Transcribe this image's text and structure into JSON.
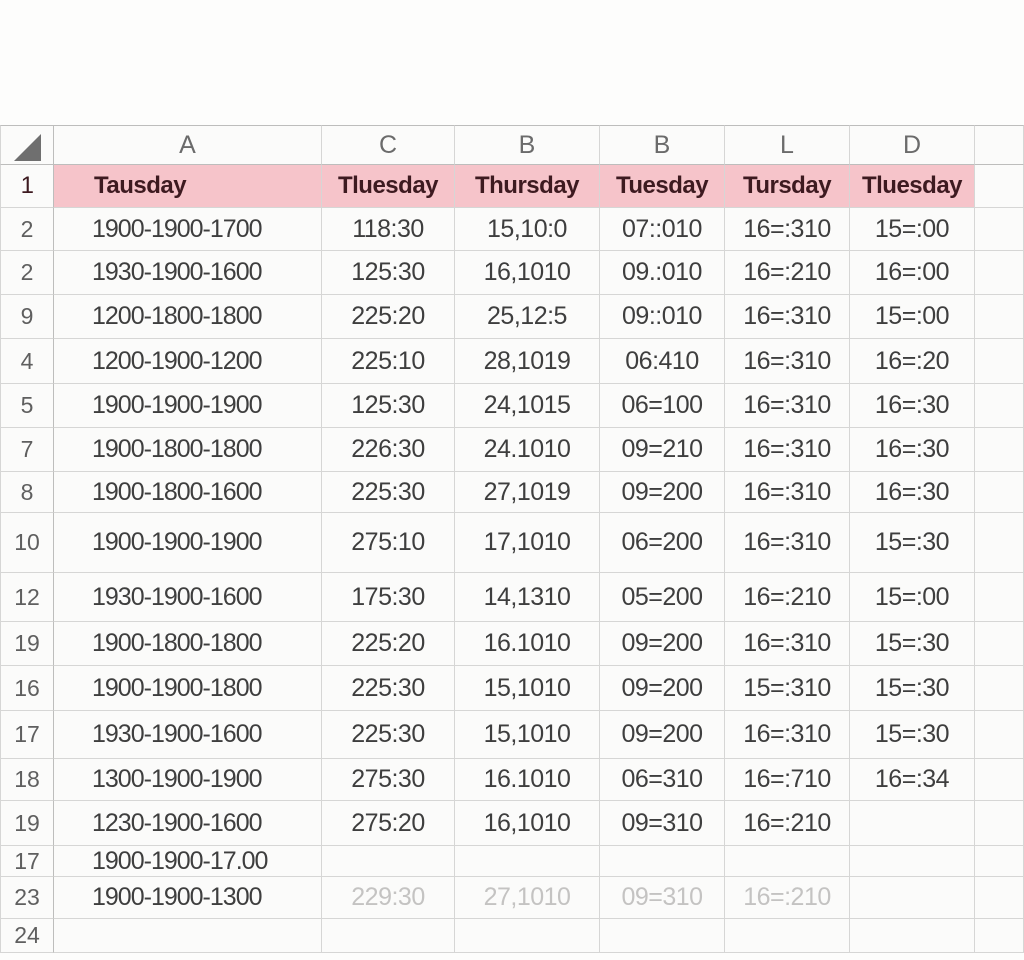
{
  "spreadsheet": {
    "corner_icon": "select-all-triangle",
    "column_headers": [
      "A",
      "C",
      "B",
      "B",
      "L",
      "D",
      ""
    ],
    "day_header_row": {
      "label": "1",
      "cells": [
        "Tausday",
        "Tluesday",
        "Thursday",
        "Tuesday",
        "Tursday",
        "Tluesday",
        ""
      ]
    },
    "rows": [
      {
        "label": "2",
        "cells": [
          "1900-1900-1700",
          "118:30",
          "15,10:0",
          "07::010",
          "16=:310",
          "15=:00",
          ""
        ]
      },
      {
        "label": "2",
        "cells": [
          "1930-1900-1600",
          "125:30",
          "16,1010",
          "09.:010",
          "16=:210",
          "16=:00",
          ""
        ]
      },
      {
        "label": "9",
        "cells": [
          "1200-1800-1800",
          "225:20",
          "25,12:5",
          "09::010",
          "16=:310",
          "15=:00",
          ""
        ]
      },
      {
        "label": "4",
        "cells": [
          "1200-1900-1200",
          "225:10",
          "28,1019",
          "06:410",
          "16=:310",
          "16=:20",
          ""
        ]
      },
      {
        "label": "5",
        "cells": [
          "1900-1900-1900",
          "125:30",
          "24,1015",
          "06=100",
          "16=:310",
          "16=:30",
          ""
        ]
      },
      {
        "label": "7",
        "cells": [
          "1900-1800-1800",
          "226:30",
          "24.1010",
          "09=210",
          "16=:310",
          "16=:30",
          ""
        ]
      },
      {
        "label": "8",
        "cells": [
          "1900-1800-1600",
          "225:30",
          "27,1019",
          "09=200",
          "16=:310",
          "16=:30",
          ""
        ]
      },
      {
        "label": "10",
        "cells": [
          "1900-1900-1900",
          "275:10",
          "17,1010",
          "06=200",
          "16=:310",
          "15=:30",
          ""
        ]
      },
      {
        "label": "12",
        "cells": [
          "1930-1900-1600",
          "175:30",
          "14,1310",
          "05=200",
          "16=:210",
          "15=:00",
          ""
        ]
      },
      {
        "label": "19",
        "cells": [
          "1900-1800-1800",
          "225:20",
          "16.1010",
          "09=200",
          "16=:310",
          "15=:30",
          ""
        ]
      },
      {
        "label": "16",
        "cells": [
          "1900-1900-1800",
          "225:30",
          "15,1010",
          "09=200",
          "15=:310",
          "15=:30",
          ""
        ]
      },
      {
        "label": "17",
        "cells": [
          "1930-1900-1600",
          "225:30",
          "15,1010",
          "09=200",
          "16=:310",
          "15=:30",
          ""
        ]
      },
      {
        "label": "18",
        "cells": [
          "1300-1900-1900",
          "275:30",
          "16.1010",
          "06=310",
          "16=:710",
          "16=:34",
          ""
        ]
      },
      {
        "label": "19",
        "cells": [
          "1230-1900-1600",
          "275:20",
          "16,1010",
          "09=310",
          "16=:210",
          "",
          ""
        ]
      },
      {
        "label": "17",
        "cells": [
          "1900-1900-17.00",
          "",
          "",
          "",
          "",
          "",
          ""
        ]
      },
      {
        "label": "23",
        "muted_from": 1,
        "cells": [
          "1900-1900-1300",
          "229:30",
          "27,1010",
          "09=310",
          "16=:210",
          "",
          ""
        ]
      },
      {
        "label": "24",
        "cells": [
          "",
          "",
          "",
          "",
          "",
          "",
          ""
        ]
      }
    ],
    "colors": {
      "header_fill": "#f6c4ca",
      "header_text": "#3d1a20",
      "grid_line": "#d6d6d5",
      "label_border": "#bdbdbc",
      "cell_bg": "#fbfbfa",
      "cell_text": "#3e3e3e",
      "muted_text": "#c4c3c2",
      "label_text": "#5f5f5f"
    }
  }
}
